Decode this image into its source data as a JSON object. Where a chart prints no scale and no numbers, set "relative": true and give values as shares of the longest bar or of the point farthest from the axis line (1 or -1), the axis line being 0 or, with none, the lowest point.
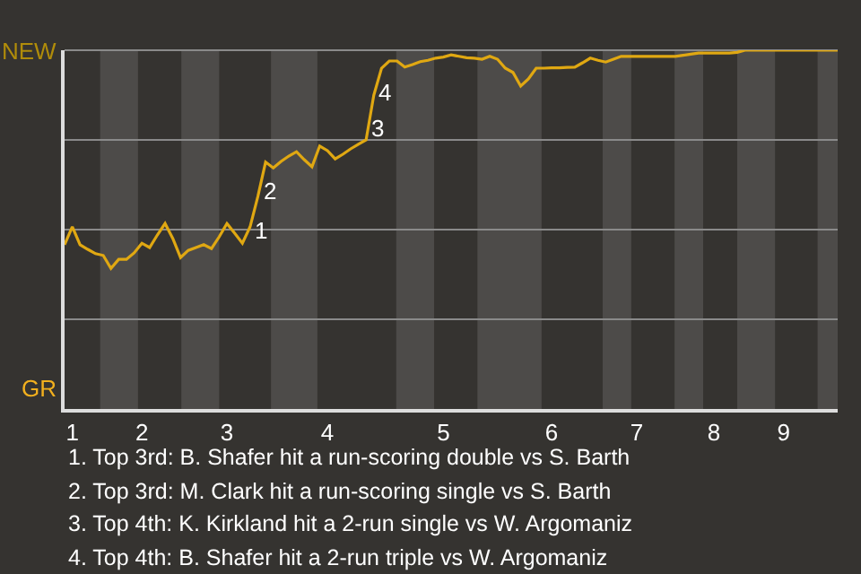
{
  "chart_data": {
    "type": "line",
    "relative": true,
    "categories": [
      null,
      "1",
      null,
      null,
      null,
      null,
      null,
      null,
      null,
      null,
      "2",
      null,
      null,
      null,
      null,
      null,
      null,
      null,
      null,
      null,
      null,
      "3",
      null,
      null,
      null,
      null,
      null,
      null,
      null,
      null,
      null,
      null,
      null,
      null,
      "4",
      null,
      null,
      null,
      null,
      null,
      null,
      null,
      null,
      null,
      null,
      null,
      null,
      null,
      null,
      "5",
      null,
      null,
      null,
      null,
      null,
      null,
      null,
      null,
      null,
      null,
      null,
      null,
      null,
      "6",
      null,
      null,
      null,
      null,
      null,
      null,
      null,
      null,
      null,
      null,
      "7",
      null,
      null,
      null,
      null,
      null,
      null,
      null,
      null,
      null,
      "8",
      null,
      null,
      null,
      null,
      null,
      null,
      null,
      null,
      "9",
      null,
      null,
      null,
      null,
      null,
      null,
      null
    ],
    "series": [
      {
        "color": "#e0a812",
        "values": [
          0.458,
          0.508,
          0.458,
          0.445,
          0.433,
          0.428,
          0.392,
          0.417,
          0.417,
          0.435,
          0.462,
          0.45,
          0.485,
          0.517,
          0.475,
          0.422,
          0.442,
          0.45,
          0.458,
          0.447,
          0.48,
          0.517,
          0.49,
          0.462,
          0.508,
          0.592,
          0.688,
          0.672,
          0.69,
          0.705,
          0.717,
          0.695,
          0.675,
          0.733,
          0.72,
          0.697,
          0.71,
          0.725,
          0.738,
          0.75,
          0.875,
          0.95,
          0.97,
          0.97,
          0.953,
          0.96,
          0.968,
          0.972,
          0.978,
          0.981,
          0.987,
          0.983,
          0.979,
          0.978,
          0.975,
          0.983,
          0.975,
          0.95,
          0.938,
          0.9,
          0.92,
          0.95,
          0.95,
          0.951,
          0.951,
          0.952,
          0.953,
          0.965,
          0.978,
          0.972,
          0.967,
          0.975,
          0.983,
          0.983,
          0.983,
          0.983,
          0.983,
          0.983,
          0.983,
          0.983,
          0.986,
          0.989,
          0.992,
          0.992,
          0.992,
          0.992,
          0.992,
          0.994,
          1.0,
          1.0,
          1.0,
          1.0,
          1.0,
          1.0,
          1.0,
          1.0,
          1.0,
          1.0,
          1.0,
          1.0,
          1.0
        ]
      }
    ],
    "grid": "y",
    "annotations": [
      "NEW",
      "GR",
      "1",
      "2",
      "3",
      "4",
      "1. Top 3rd: B. Shafer hit a run-scoring double vs S. Barth",
      "2. Top 3rd: M. Clark hit a run-scoring single vs S. Barth",
      "3. Top 4th: K. Kirkland hit a 2-run single vs W. Argomaniz",
      "4. Top 4th: B. Shafer hit a 2-run triple vs W. Argomaniz"
    ]
  }
}
